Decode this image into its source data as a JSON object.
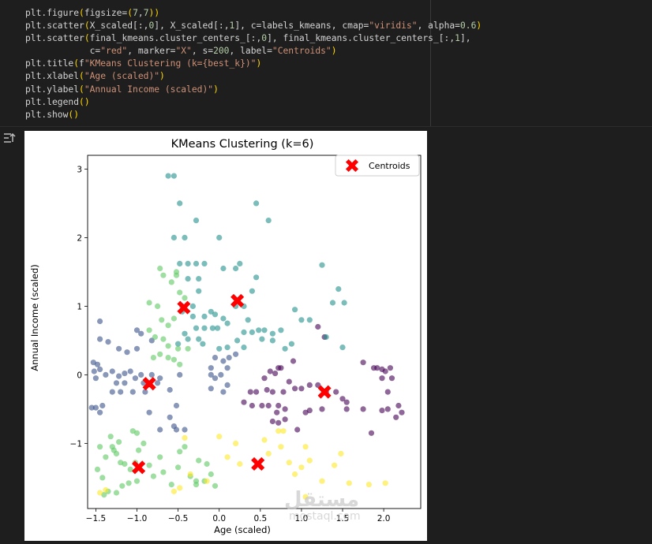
{
  "code": {
    "lines": [
      "plt.figure(figsize=(7,7))",
      "plt.scatter(X_scaled[:,0], X_scaled[:,1], c=labels_kmeans, cmap=\"viridis\", alpha=0.6)",
      "plt.scatter(final_kmeans.cluster_centers_[:,0], final_kmeans.cluster_centers_[:,1],",
      "            c=\"red\", marker=\"X\", s=200, label=\"Centroids\")",
      "plt.title(f\"KMeans Clustering (k={best_k})\")",
      "plt.xlabel(\"Age (scaled)\")",
      "plt.ylabel(\"Annual Income (scaled)\")",
      "plt.legend()",
      "plt.show()"
    ]
  },
  "output_icon": "output-toggle-icon",
  "watermark": {
    "arabic": "مستقل",
    "latin": "mostaql.com"
  },
  "chart_data": {
    "type": "scatter",
    "title": "KMeans Clustering (k=6)",
    "xlabel": "Age (scaled)",
    "ylabel": "Annual Income (scaled)",
    "xlim": [
      -1.6,
      2.45
    ],
    "ylim": [
      -1.95,
      3.2
    ],
    "xticks": [
      -1.5,
      -1.0,
      -0.5,
      0.0,
      0.5,
      1.0,
      1.5,
      2.0
    ],
    "xtick_labels": [
      "−1.5",
      "−1.0",
      "−0.5",
      "0.0",
      "0.5",
      "1.0",
      "1.5",
      "2.0"
    ],
    "yticks": [
      -1,
      0,
      1,
      2,
      3
    ],
    "ytick_labels": [
      "−1",
      "0",
      "1",
      "2",
      "3"
    ],
    "legend": {
      "label": "Centroids",
      "placement": "top-right"
    },
    "grid": false,
    "colors": {
      "c0": "#440154",
      "c1": "#3b528b",
      "c2": "#21918c",
      "c3": "#5ec962",
      "c4": "#fde725",
      "centroid": "#ff0000"
    },
    "series": [
      {
        "color": "#440154",
        "points": [
          [
            0.9,
            0.2
          ],
          [
            0.75,
            0.1
          ],
          [
            0.68,
            0.02
          ],
          [
            0.62,
            0.05
          ],
          [
            0.55,
            -0.05
          ],
          [
            0.72,
            0.1
          ],
          [
            0.58,
            -0.22
          ],
          [
            0.45,
            -0.25
          ],
          [
            0.38,
            -0.25
          ],
          [
            0.65,
            -0.25
          ],
          [
            0.78,
            -0.25
          ],
          [
            0.85,
            -0.1
          ],
          [
            0.92,
            -0.2
          ],
          [
            1.0,
            -0.2
          ],
          [
            1.1,
            -0.15
          ],
          [
            1.2,
            -0.15
          ],
          [
            0.72,
            -0.45
          ],
          [
            0.6,
            -0.45
          ],
          [
            0.52,
            -0.45
          ],
          [
            0.4,
            -0.45
          ],
          [
            0.3,
            -0.4
          ],
          [
            0.8,
            -0.5
          ],
          [
            0.65,
            -0.68
          ],
          [
            0.72,
            -0.7
          ],
          [
            0.8,
            -0.65
          ],
          [
            0.7,
            -0.55
          ],
          [
            1.05,
            -0.55
          ],
          [
            1.1,
            -0.52
          ],
          [
            0.95,
            -0.8
          ],
          [
            1.25,
            -0.5
          ],
          [
            1.3,
            -0.25
          ],
          [
            1.42,
            -0.25
          ],
          [
            1.5,
            -0.35
          ],
          [
            1.55,
            -0.5
          ],
          [
            1.2,
            0.7
          ],
          [
            1.28,
            0.55
          ],
          [
            1.75,
            0.18
          ],
          [
            1.88,
            0.1
          ],
          [
            1.92,
            0.1
          ],
          [
            1.98,
            0.08
          ],
          [
            2.02,
            0.05
          ],
          [
            2.08,
            0.1
          ],
          [
            2.1,
            -0.05
          ],
          [
            1.98,
            -0.05
          ],
          [
            2.05,
            -0.25
          ],
          [
            2.18,
            -0.45
          ],
          [
            2.22,
            -0.55
          ],
          [
            2.15,
            -0.62
          ],
          [
            2.05,
            -0.5
          ],
          [
            1.98,
            -0.52
          ],
          [
            1.85,
            -0.85
          ],
          [
            1.75,
            -0.5
          ],
          [
            1.55,
            -0.4
          ]
        ]
      },
      {
        "color": "#3b528b",
        "points": [
          [
            -1.55,
            -0.48
          ],
          [
            -1.5,
            -0.48
          ],
          [
            -1.45,
            -0.55
          ],
          [
            -1.42,
            -0.45
          ],
          [
            -1.53,
            0.18
          ],
          [
            -1.48,
            0.15
          ],
          [
            -1.45,
            0.08
          ],
          [
            -1.52,
            0.05
          ],
          [
            -1.5,
            -0.05
          ],
          [
            -1.38,
            0.0
          ],
          [
            -1.3,
            0.05
          ],
          [
            -1.22,
            -0.02
          ],
          [
            -1.15,
            0.02
          ],
          [
            -1.08,
            0.05
          ],
          [
            -1.02,
            -0.05
          ],
          [
            -0.95,
            0.0
          ],
          [
            -0.82,
            0.0
          ],
          [
            -0.72,
            -0.05
          ],
          [
            -0.48,
            0.0
          ],
          [
            -0.1,
            0.0
          ],
          [
            -0.05,
            -0.05
          ],
          [
            0.02,
            0.0
          ],
          [
            0.05,
            0.2
          ],
          [
            0.12,
            0.25
          ],
          [
            0.2,
            0.3
          ],
          [
            -0.05,
            0.25
          ],
          [
            -0.1,
            0.1
          ],
          [
            0.1,
            0.1
          ],
          [
            -1.25,
            -0.12
          ],
          [
            -1.15,
            -0.12
          ],
          [
            -0.92,
            -0.12
          ],
          [
            -0.75,
            -0.12
          ],
          [
            -0.6,
            -0.22
          ],
          [
            -1.3,
            -0.25
          ],
          [
            -1.2,
            -0.25
          ],
          [
            -1.05,
            -0.25
          ],
          [
            -0.9,
            -0.25
          ],
          [
            -0.1,
            -0.2
          ],
          [
            0.05,
            -0.25
          ],
          [
            0.1,
            -0.15
          ],
          [
            -1.45,
            0.78
          ],
          [
            -1.45,
            0.52
          ],
          [
            -1.35,
            0.48
          ],
          [
            -1.22,
            0.38
          ],
          [
            -1.12,
            0.33
          ],
          [
            -1.0,
            0.38
          ],
          [
            -0.82,
            0.5
          ],
          [
            -0.95,
            0.6
          ],
          [
            -1.0,
            0.65
          ],
          [
            -0.85,
            -0.55
          ],
          [
            -0.6,
            -0.62
          ],
          [
            -0.55,
            -0.75
          ],
          [
            -0.52,
            -0.8
          ],
          [
            -0.42,
            -0.8
          ],
          [
            -0.72,
            -0.8
          ],
          [
            -0.52,
            -0.45
          ]
        ]
      },
      {
        "color": "#21918c",
        "points": [
          [
            -0.62,
            2.9
          ],
          [
            -0.55,
            2.9
          ],
          [
            -0.48,
            2.5
          ],
          [
            -0.55,
            2.0
          ],
          [
            -0.48,
            1.62
          ],
          [
            -0.38,
            1.62
          ],
          [
            -0.28,
            1.62
          ],
          [
            -0.18,
            1.62
          ],
          [
            -0.28,
            2.25
          ],
          [
            -0.42,
            2.0
          ],
          [
            0.45,
            2.5
          ],
          [
            0.6,
            2.25
          ],
          [
            -0.25,
            1.4
          ],
          [
            -0.38,
            1.4
          ],
          [
            -0.45,
            1.0
          ],
          [
            -0.32,
            1.0
          ],
          [
            -0.25,
            1.22
          ],
          [
            -0.45,
            0.92
          ],
          [
            -0.32,
            0.85
          ],
          [
            -0.18,
            0.85
          ],
          [
            -0.1,
            0.92
          ],
          [
            -0.05,
            0.88
          ],
          [
            0.05,
            0.82
          ],
          [
            0.1,
            0.75
          ],
          [
            -0.28,
            0.68
          ],
          [
            -0.18,
            0.68
          ],
          [
            -0.08,
            0.68
          ],
          [
            -0.02,
            0.68
          ],
          [
            -0.42,
            0.6
          ],
          [
            -0.38,
            0.52
          ],
          [
            -0.25,
            0.52
          ],
          [
            -0.5,
            0.45
          ],
          [
            -0.2,
            0.45
          ],
          [
            0.0,
            2.0
          ],
          [
            0.05,
            1.55
          ],
          [
            0.2,
            1.55
          ],
          [
            0.25,
            1.62
          ],
          [
            0.45,
            1.42
          ],
          [
            0.4,
            1.22
          ],
          [
            0.3,
            1.0
          ],
          [
            0.2,
            1.0
          ],
          [
            0.35,
            0.8
          ],
          [
            0.4,
            0.62
          ],
          [
            0.48,
            0.65
          ],
          [
            0.55,
            0.65
          ],
          [
            0.3,
            0.62
          ],
          [
            0.22,
            0.5
          ],
          [
            0.52,
            0.52
          ],
          [
            0.65,
            0.6
          ],
          [
            0.65,
            0.5
          ],
          [
            0.75,
            0.65
          ],
          [
            0.8,
            0.38
          ],
          [
            0.88,
            0.45
          ],
          [
            1.0,
            0.8
          ],
          [
            1.1,
            0.8
          ],
          [
            1.25,
            1.6
          ],
          [
            1.45,
            1.25
          ],
          [
            1.38,
            1.05
          ],
          [
            1.52,
            1.05
          ],
          [
            1.3,
            0.55
          ],
          [
            1.5,
            0.4
          ],
          [
            0.92,
            0.95
          ],
          [
            0.0,
            0.38
          ],
          [
            0.1,
            0.4
          ],
          [
            0.3,
            0.4
          ]
        ]
      },
      {
        "color": "#5ec962",
        "points": [
          [
            -0.52,
            1.5
          ],
          [
            -0.72,
            1.55
          ],
          [
            -0.68,
            1.45
          ],
          [
            -0.58,
            1.35
          ],
          [
            -0.52,
            1.45
          ],
          [
            -0.48,
            1.2
          ],
          [
            -0.42,
            1.12
          ],
          [
            -0.85,
            1.05
          ],
          [
            -0.75,
            1.0
          ],
          [
            -0.7,
            0.8
          ],
          [
            -0.55,
            0.82
          ],
          [
            -0.62,
            0.72
          ],
          [
            -0.85,
            0.65
          ],
          [
            -0.78,
            0.55
          ],
          [
            -0.68,
            0.52
          ],
          [
            -0.62,
            0.42
          ],
          [
            -0.5,
            0.38
          ],
          [
            -0.72,
            0.3
          ],
          [
            -0.62,
            0.25
          ],
          [
            -0.55,
            0.22
          ],
          [
            -0.48,
            0.15
          ],
          [
            -0.8,
            0.25
          ],
          [
            -0.38,
            0.38
          ],
          [
            -1.45,
            -1.05
          ],
          [
            -1.48,
            -1.38
          ],
          [
            -1.42,
            -1.5
          ],
          [
            -1.38,
            -1.2
          ],
          [
            -1.3,
            -1.05
          ],
          [
            -1.25,
            -1.15
          ],
          [
            -1.2,
            -1.28
          ],
          [
            -1.32,
            -0.9
          ],
          [
            -1.28,
            -1.1
          ],
          [
            -1.22,
            -0.98
          ],
          [
            -1.15,
            -1.3
          ],
          [
            -1.08,
            -1.38
          ],
          [
            -1.02,
            -1.28
          ],
          [
            -0.98,
            -1.1
          ],
          [
            -1.05,
            -0.82
          ],
          [
            -1.0,
            -0.85
          ],
          [
            -0.92,
            -1.0
          ],
          [
            -0.85,
            -1.32
          ],
          [
            -0.8,
            -1.48
          ],
          [
            -0.72,
            -1.2
          ],
          [
            -0.68,
            -1.42
          ],
          [
            -1.4,
            -1.75
          ],
          [
            -1.35,
            -1.7
          ],
          [
            -1.25,
            -1.72
          ],
          [
            -1.18,
            -1.62
          ],
          [
            -1.1,
            -1.58
          ],
          [
            -1.0,
            -1.55
          ],
          [
            -0.58,
            -1.6
          ],
          [
            -0.5,
            -1.35
          ],
          [
            -0.48,
            -1.12
          ],
          [
            -0.42,
            -1.05
          ],
          [
            -0.35,
            -1.48
          ],
          [
            -0.28,
            -1.55
          ],
          [
            -0.28,
            -1.6
          ],
          [
            -0.25,
            -1.25
          ],
          [
            -0.18,
            -1.55
          ],
          [
            -0.1,
            -1.45
          ],
          [
            -0.05,
            -1.62
          ],
          [
            -0.15,
            -1.3
          ]
        ]
      },
      {
        "color": "#fde725",
        "points": [
          [
            -1.45,
            -1.72
          ],
          [
            -1.38,
            -1.68
          ],
          [
            -0.55,
            -1.7
          ],
          [
            -0.48,
            -1.65
          ],
          [
            -0.42,
            -0.92
          ],
          [
            -0.35,
            -1.45
          ],
          [
            -0.15,
            -1.55
          ],
          [
            0.0,
            -0.9
          ],
          [
            0.1,
            -1.2
          ],
          [
            0.2,
            -1.0
          ],
          [
            0.25,
            -1.3
          ],
          [
            0.55,
            -0.95
          ],
          [
            0.6,
            -1.15
          ],
          [
            0.72,
            -0.82
          ],
          [
            0.78,
            -0.82
          ],
          [
            0.75,
            -1.05
          ],
          [
            0.85,
            -1.28
          ],
          [
            0.92,
            -1.45
          ],
          [
            1.0,
            -1.35
          ],
          [
            1.05,
            -1.05
          ],
          [
            1.1,
            -1.25
          ],
          [
            1.25,
            -1.55
          ],
          [
            1.4,
            -1.32
          ],
          [
            1.58,
            -1.58
          ],
          [
            1.48,
            -1.15
          ],
          [
            1.82,
            -1.6
          ],
          [
            2.02,
            -1.58
          ],
          [
            1.05,
            -1.78
          ]
        ]
      }
    ],
    "centroids": [
      [
        -0.43,
        0.98
      ],
      [
        0.22,
        1.08
      ],
      [
        -0.85,
        -0.13
      ],
      [
        1.28,
        -0.25
      ],
      [
        -0.98,
        -1.35
      ],
      [
        0.47,
        -1.3
      ]
    ]
  }
}
